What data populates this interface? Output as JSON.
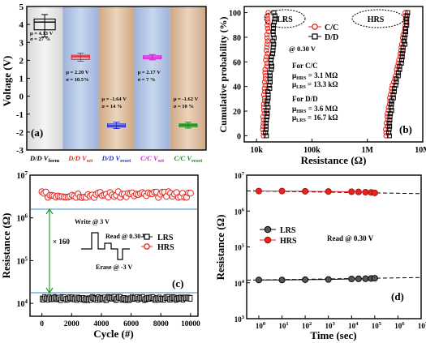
{
  "panel_a": {
    "tag": "(a)",
    "ylabel": "Voltage (V)",
    "ylim": [
      -3,
      5
    ],
    "yticks": [
      "5",
      "4",
      "3",
      "2",
      "1",
      "0",
      "-1",
      "-2",
      "-3"
    ],
    "columns": [
      {
        "label": "D/D V",
        "sub": "form",
        "color": "#000000",
        "bg": "light"
      },
      {
        "label": "D/D V",
        "sub": "set",
        "color": "#e8241f",
        "bg": "blue"
      },
      {
        "label": "D/D V",
        "sub": "reset",
        "color": "#2430d0",
        "bg": "tan"
      },
      {
        "label": "C/C V",
        "sub": "set",
        "color": "#d020d0",
        "bg": "blue"
      },
      {
        "label": "C/C V",
        "sub": "reset",
        "color": "#178a17",
        "bg": "tan"
      }
    ],
    "stats": [
      {
        "mu": "μ = 4.13 V",
        "sigma": "σ = 27 %"
      },
      {
        "mu": "μ = 2.20 V",
        "sigma": "σ = 10.5%"
      },
      {
        "mu": "μ = -1.64 V",
        "sigma": "σ = 14 %"
      },
      {
        "mu": "μ = 2.17 V",
        "sigma": "σ = 7 %"
      },
      {
        "mu": "μ = -1.62 V",
        "sigma": "σ = 10 %"
      }
    ]
  },
  "panel_b": {
    "tag": "(b)",
    "ylabel": "Cumulative probability (%)",
    "xlabel": "Resistance (Ω)",
    "xticks": [
      "10k",
      "100k",
      "1M",
      "10M"
    ],
    "yticks": [
      "0",
      "20",
      "40",
      "60",
      "80",
      "100"
    ],
    "legend": [
      "C/C",
      "D/D"
    ],
    "lrs_label": "LRS",
    "hrs_label": "HRS",
    "read": "@ 0.30 V",
    "cc_title": "For C/C",
    "cc_hrs": "3.1 MΩ",
    "cc_lrs": "13.3 kΩ",
    "dd_title": "For D/D",
    "dd_hrs": "3.6 MΩ",
    "dd_lrs": "16.7 kΩ",
    "mu_hrs": "μ",
    "mu_hrs_sub": "HRS",
    "mu_lrs_sub": "LRS",
    "eq": "= "
  },
  "panel_c": {
    "tag": "(c)",
    "ylabel": "Resistance (Ω)",
    "xlabel": "Cycle (#)",
    "xticks": [
      "0",
      "2000",
      "4000",
      "6000",
      "8000",
      "10000"
    ],
    "legend": [
      "LRS",
      "HRS"
    ],
    "ratio": "× 160",
    "write": "Write @ 3 V",
    "read": "Read @ 0.30 V",
    "erase": "Erase @ -3 V"
  },
  "panel_d": {
    "tag": "(d)",
    "ylabel": "Resistance (Ω)",
    "xlabel": "Time (sec)",
    "legend": [
      "LRS",
      "HRS"
    ],
    "read": "Read @ 0.30 V"
  },
  "chart_data": [
    {
      "type": "box",
      "ylabel": "Voltage (V)",
      "ylim": [
        -3,
        5
      ],
      "categories": [
        "D/D Vform",
        "D/D Vset",
        "D/D Vreset",
        "C/C Vset",
        "C/C Vreset"
      ],
      "mean": [
        4.13,
        2.2,
        -1.64,
        2.17,
        -1.62
      ],
      "box_low": [
        3.7,
        2.05,
        -1.72,
        2.08,
        -1.7
      ],
      "box_high": [
        4.3,
        2.28,
        -1.55,
        2.25,
        -1.55
      ],
      "whisker_low": [
        3.3,
        1.95,
        -1.8,
        2.02,
        -1.78
      ],
      "whisker_high": [
        4.55,
        2.4,
        -1.45,
        2.32,
        -1.45
      ]
    },
    {
      "type": "scatter",
      "xlabel": "Resistance (Ω)",
      "ylabel": "Cumulative probability (%)",
      "xscale": "log",
      "xlim": [
        6000,
        10000000
      ],
      "ylim": [
        -5,
        105
      ],
      "series": [
        {
          "name": "C/C",
          "state": "LRS",
          "x_min": 13300,
          "x_max": 16000
        },
        {
          "name": "C/C",
          "state": "HRS",
          "x_min": 2200000,
          "x_max": 4800000
        },
        {
          "name": "D/D",
          "state": "LRS",
          "x_min": 15000,
          "x_max": 21000
        },
        {
          "name": "D/D",
          "state": "HRS",
          "x_min": 2500000,
          "x_max": 5200000
        }
      ]
    },
    {
      "type": "scatter",
      "xlabel": "Cycle (#)",
      "ylabel": "Resistance (Ω)",
      "yscale": "log",
      "xlim": [
        -800,
        10500
      ],
      "ylim": [
        5000,
        10000000
      ],
      "series": [
        {
          "name": "LRS",
          "x_range": [
            0,
            10000
          ],
          "y_mean": 13000
        },
        {
          "name": "HRS",
          "x_range": [
            0,
            10000
          ],
          "y_mean": 3500000
        }
      ]
    },
    {
      "type": "line",
      "xlabel": "Time (sec)",
      "ylabel": "Resistance (Ω)",
      "xscale": "log",
      "yscale": "log",
      "xlim": [
        0.3,
        10000000
      ],
      "ylim": [
        1000,
        10000000
      ],
      "series": [
        {
          "name": "LRS",
          "x": [
            1,
            10,
            100,
            1000,
            10000,
            20000,
            40000,
            70000,
            100000
          ],
          "y": [
            12000,
            12000,
            12200,
            12400,
            12800,
            12900,
            13000,
            13200,
            13400
          ]
        },
        {
          "name": "HRS",
          "x": [
            1,
            10,
            100,
            1000,
            10000,
            20000,
            40000,
            70000,
            100000
          ],
          "y": [
            3600000,
            3600000,
            3550000,
            3500000,
            3450000,
            3400000,
            3350000,
            3300000,
            3200000
          ]
        }
      ]
    }
  ]
}
